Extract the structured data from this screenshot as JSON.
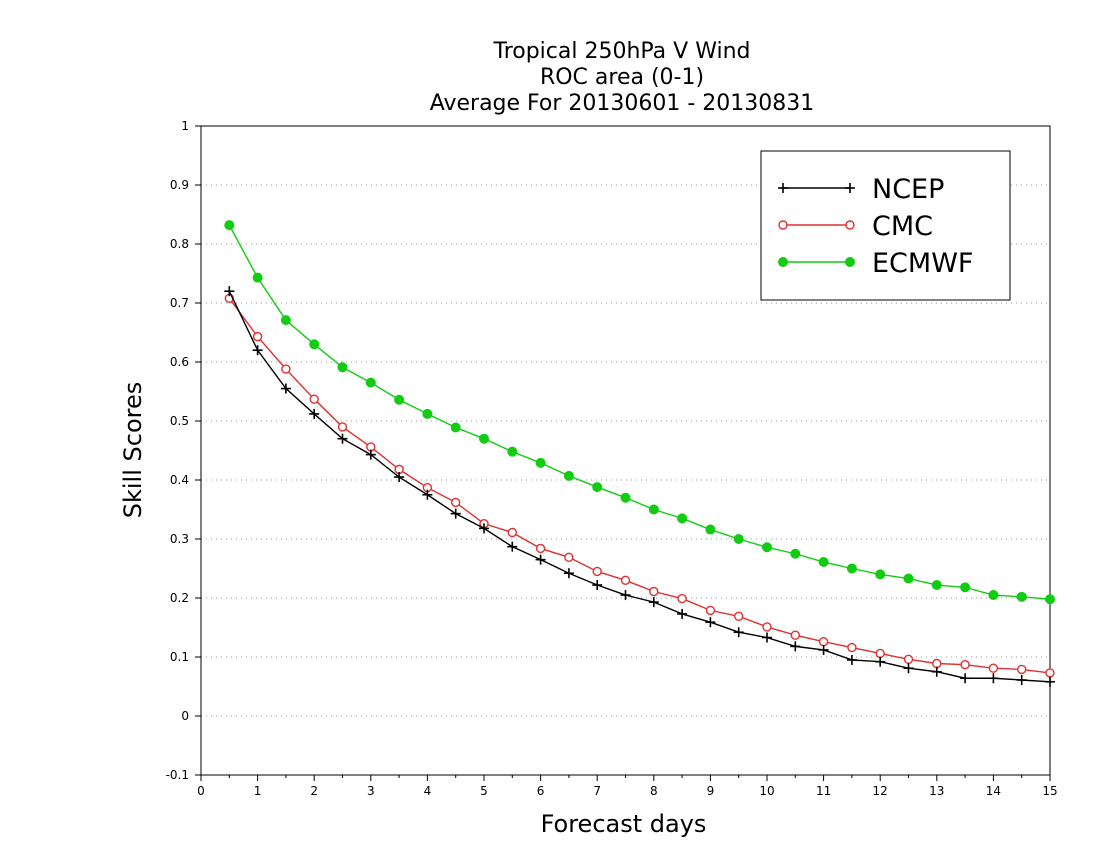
{
  "chart_data": {
    "type": "line",
    "title": [
      "Tropical 250hPa V Wind",
      "ROC area (0-1)",
      "Average For 20130601 - 20130831"
    ],
    "xlabel": "Forecast days",
    "ylabel": "Skill Scores",
    "xlim": [
      0,
      15
    ],
    "ylim": [
      -0.1,
      1
    ],
    "x_ticks": [
      0,
      1,
      2,
      3,
      4,
      5,
      6,
      7,
      8,
      9,
      10,
      11,
      12,
      13,
      14,
      15
    ],
    "x_tick_labels": [
      "0",
      "1",
      "2",
      "3",
      "4",
      "5",
      "6",
      "7",
      "8",
      "9",
      "10",
      "11",
      "12",
      "13",
      "14",
      "15"
    ],
    "y_ticks": [
      -0.1,
      0,
      0.1,
      0.2,
      0.3,
      0.4,
      0.5,
      0.6,
      0.7,
      0.8,
      0.9,
      1
    ],
    "y_tick_labels": [
      "-0.1",
      "0",
      "0.1",
      "0.2",
      "0.3",
      "0.4",
      "0.5",
      "0.6",
      "0.7",
      "0.8",
      "0.9",
      "1"
    ],
    "grid": "horizontal dotted",
    "legend_position": "top-right",
    "x": [
      0.5,
      1,
      1.5,
      2,
      2.5,
      3,
      3.5,
      4,
      4.5,
      5,
      5.5,
      6,
      6.5,
      7,
      7.5,
      8,
      8.5,
      9,
      9.5,
      10,
      10.5,
      11,
      11.5,
      12,
      12.5,
      13,
      13.5,
      14,
      14.5,
      15
    ],
    "series": [
      {
        "name": "NCEP",
        "color": "#000000",
        "marker": "plus",
        "values": [
          0.72,
          0.62,
          0.555,
          0.512,
          0.47,
          0.443,
          0.405,
          0.375,
          0.343,
          0.318,
          0.287,
          0.265,
          0.242,
          0.222,
          0.205,
          0.193,
          0.173,
          0.159,
          0.142,
          0.133,
          0.118,
          0.112,
          0.095,
          0.092,
          0.081,
          0.075,
          0.064,
          0.064,
          0.061,
          0.058
        ]
      },
      {
        "name": "CMC",
        "color": "#e03030",
        "marker": "open-circle",
        "values": [
          0.708,
          0.643,
          0.588,
          0.537,
          0.49,
          0.456,
          0.418,
          0.387,
          0.362,
          0.326,
          0.311,
          0.284,
          0.269,
          0.245,
          0.23,
          0.211,
          0.199,
          0.179,
          0.169,
          0.151,
          0.137,
          0.126,
          0.116,
          0.106,
          0.096,
          0.089,
          0.087,
          0.081,
          0.079,
          0.073
        ]
      },
      {
        "name": "ECMWF",
        "color": "#11cc11",
        "marker": "filled-circle",
        "values": [
          0.832,
          0.743,
          0.671,
          0.63,
          0.591,
          0.565,
          0.536,
          0.512,
          0.489,
          0.47,
          0.448,
          0.429,
          0.407,
          0.388,
          0.37,
          0.35,
          0.335,
          0.316,
          0.3,
          0.286,
          0.275,
          0.261,
          0.25,
          0.24,
          0.233,
          0.222,
          0.218,
          0.205,
          0.202,
          0.198
        ]
      }
    ]
  }
}
